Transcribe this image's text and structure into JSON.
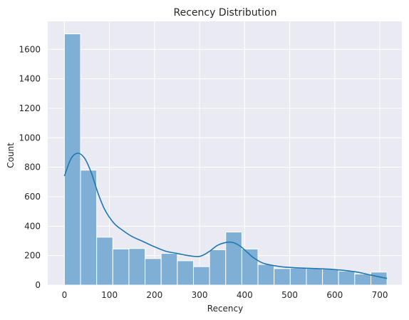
{
  "chart_data": {
    "type": "bar",
    "title": "Recency Distribution",
    "xlabel": "Recency",
    "ylabel": "Count",
    "xlim": [
      -37,
      749
    ],
    "ylim": [
      0,
      1790
    ],
    "xticks": [
      0,
      100,
      200,
      300,
      400,
      500,
      600,
      700
    ],
    "yticks": [
      0,
      200,
      400,
      600,
      800,
      1000,
      1200,
      1400,
      1600
    ],
    "grid": true,
    "bin_edges": [
      0,
      35.8,
      71.6,
      107.4,
      143.2,
      179,
      214.8,
      250.6,
      286.4,
      322.2,
      358,
      393.8,
      429.6,
      465.4,
      501.2,
      537,
      572.8,
      608.6,
      644.4,
      680.2,
      716
    ],
    "counts": [
      1705,
      780,
      325,
      245,
      248,
      180,
      215,
      165,
      125,
      240,
      360,
      245,
      140,
      112,
      115,
      112,
      110,
      95,
      75,
      88
    ],
    "kde": {
      "x": [
        0,
        15,
        30,
        45,
        60,
        75,
        90,
        110,
        130,
        150,
        175,
        200,
        225,
        250,
        275,
        300,
        320,
        340,
        360,
        375,
        390,
        405,
        420,
        440,
        460,
        480,
        500,
        530,
        560,
        590,
        620,
        650,
        680,
        716
      ],
      "y": [
        740,
        860,
        895,
        860,
        760,
        620,
        510,
        420,
        370,
        330,
        295,
        260,
        230,
        215,
        200,
        195,
        225,
        270,
        290,
        288,
        265,
        225,
        185,
        150,
        135,
        125,
        120,
        115,
        112,
        108,
        100,
        88,
        68,
        45
      ]
    },
    "colors": {
      "bar": "#7fafd4",
      "bar_edge": "#ffffff",
      "kde": "#1f77b4",
      "background": "#eaeaf2",
      "grid": "#ffffff"
    }
  }
}
